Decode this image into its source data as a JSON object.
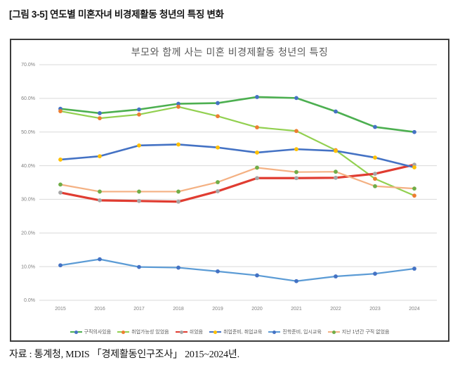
{
  "figure_caption": "[그림 3-5] 연도별 미혼자녀 비경제활동 청년의 특징 변화",
  "source_note": "자료 : 통계청, MDIS 「경제활동인구조사」 2015~2024년.",
  "chart_data": {
    "type": "line",
    "title": "부모와 함께 사는 미혼 비경제활동 청년의 특징",
    "x": [
      "2015",
      "2016",
      "2017",
      "2018",
      "2019",
      "2020",
      "2021",
      "2022",
      "2023",
      "2024"
    ],
    "xlabel": "",
    "ylabel": "",
    "ylim": [
      0,
      70
    ],
    "y_ticks": [
      "0.0%",
      "10.0%",
      "20.0%",
      "30.0%",
      "40.0%",
      "50.0%",
      "60.0%",
      "70.0%"
    ],
    "grid": true,
    "legend_position": "bottom",
    "colors": {
      "grid": "#d9d9d9",
      "axis_text": "#7f7f7f",
      "title_text": "#595959",
      "legend_text": "#595959"
    },
    "series": [
      {
        "name": "구직의사있음",
        "line_color": "#4caf50",
        "marker_color": "#4472c4",
        "line_width": 2.6,
        "values": [
          56.9,
          55.6,
          56.7,
          58.4,
          58.6,
          60.4,
          60.1,
          56.1,
          51.5,
          50.0
        ]
      },
      {
        "name": "취업가능성 있었음",
        "line_color": "#92d050",
        "marker_color": "#ed7d31",
        "line_width": 2.2,
        "values": [
          56.2,
          54.1,
          55.2,
          57.5,
          54.7,
          51.4,
          50.3,
          44.6,
          36.1,
          31.1
        ]
      },
      {
        "name": "쉬었음",
        "line_color": "#e03c31",
        "marker_color": "#a6a6a6",
        "line_width": 3.2,
        "values": [
          32.0,
          29.7,
          29.5,
          29.3,
          32.4,
          36.3,
          36.3,
          36.4,
          37.6,
          40.3
        ]
      },
      {
        "name": "취업준비, 취업교육",
        "line_color": "#4472c4",
        "marker_color": "#ffc000",
        "line_width": 2.6,
        "values": [
          41.8,
          42.8,
          46.0,
          46.3,
          45.4,
          43.9,
          44.9,
          44.4,
          42.4,
          39.5
        ]
      },
      {
        "name": "진학준비, 입시교육",
        "line_color": "#5b9bd5",
        "marker_color": "#4472c4",
        "line_width": 2.2,
        "values": [
          10.4,
          12.2,
          9.9,
          9.7,
          8.6,
          7.4,
          5.7,
          7.1,
          7.9,
          9.4
        ]
      },
      {
        "name": "지난 1년간 구직 없었음",
        "line_color": "#f4b183",
        "marker_color": "#70ad47",
        "line_width": 2.2,
        "values": [
          34.4,
          32.3,
          32.3,
          32.3,
          35.1,
          39.4,
          38.1,
          38.2,
          33.9,
          33.2
        ]
      }
    ]
  }
}
